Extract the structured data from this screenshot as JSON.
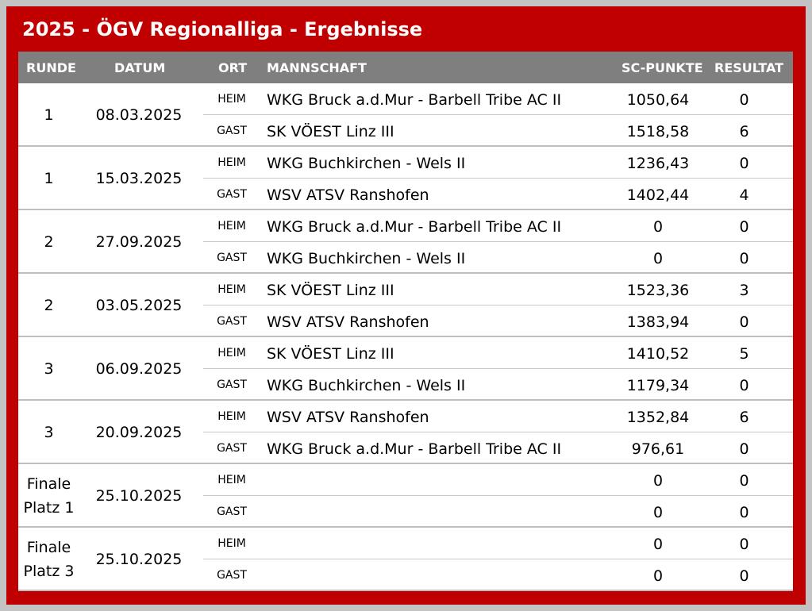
{
  "title": "2025 - ÖGV Regionalliga - Ergebnisse",
  "colors": {
    "frame": "#c00000",
    "header": "#7f7f7f",
    "outer": "#c3c3c3"
  },
  "headers": {
    "runde": "RUNDE",
    "datum": "DATUM",
    "ort": "ORT",
    "mannschaft": "MANNSCHAFT",
    "punkte": "SC-PUNKTE",
    "resultat": "RESULTAT"
  },
  "groups": [
    {
      "runde": "1",
      "datum": "08.03.2025",
      "rows": [
        {
          "ort": "HEIM",
          "team": "WKG Bruck a.d.Mur - Barbell Tribe AC II",
          "punkte": "1050,64",
          "resultat": "0"
        },
        {
          "ort": "GAST",
          "team": "SK VÖEST Linz III",
          "punkte": "1518,58",
          "resultat": "6"
        }
      ]
    },
    {
      "runde": "1",
      "datum": "15.03.2025",
      "rows": [
        {
          "ort": "HEIM",
          "team": "WKG Buchkirchen - Wels II",
          "punkte": "1236,43",
          "resultat": "0"
        },
        {
          "ort": "GAST",
          "team": "WSV ATSV Ranshofen",
          "punkte": "1402,44",
          "resultat": "4"
        }
      ]
    },
    {
      "runde": "2",
      "datum": "27.09.2025",
      "rows": [
        {
          "ort": "HEIM",
          "team": "WKG Bruck a.d.Mur - Barbell Tribe AC II",
          "punkte": "0",
          "resultat": "0"
        },
        {
          "ort": "GAST",
          "team": "WKG Buchkirchen - Wels II",
          "punkte": "0",
          "resultat": "0"
        }
      ]
    },
    {
      "runde": "2",
      "datum": "03.05.2025",
      "rows": [
        {
          "ort": "HEIM",
          "team": "SK VÖEST Linz III",
          "punkte": "1523,36",
          "resultat": "3"
        },
        {
          "ort": "GAST",
          "team": "WSV ATSV Ranshofen",
          "punkte": "1383,94",
          "resultat": "0"
        }
      ]
    },
    {
      "runde": "3",
      "datum": "06.09.2025",
      "rows": [
        {
          "ort": "HEIM",
          "team": "SK VÖEST Linz III",
          "punkte": "1410,52",
          "resultat": "5"
        },
        {
          "ort": "GAST",
          "team": "WKG Buchkirchen - Wels II",
          "punkte": "1179,34",
          "resultat": "0"
        }
      ]
    },
    {
      "runde": "3",
      "datum": "20.09.2025",
      "rows": [
        {
          "ort": "HEIM",
          "team": "WSV ATSV Ranshofen",
          "punkte": "1352,84",
          "resultat": "6"
        },
        {
          "ort": "GAST",
          "team": "WKG Bruck a.d.Mur - Barbell Tribe AC II",
          "punkte": "976,61",
          "resultat": "0"
        }
      ]
    },
    {
      "runde": "Finale\nPlatz 1",
      "datum": "25.10.2025",
      "rows": [
        {
          "ort": "HEIM",
          "team": "",
          "punkte": "0",
          "resultat": "0"
        },
        {
          "ort": "GAST",
          "team": "",
          "punkte": "0",
          "resultat": "0"
        }
      ]
    },
    {
      "runde": "Finale\nPlatz 3",
      "datum": "25.10.2025",
      "rows": [
        {
          "ort": "HEIM",
          "team": "",
          "punkte": "0",
          "resultat": "0"
        },
        {
          "ort": "GAST",
          "team": "",
          "punkte": "0",
          "resultat": "0"
        }
      ]
    }
  ]
}
